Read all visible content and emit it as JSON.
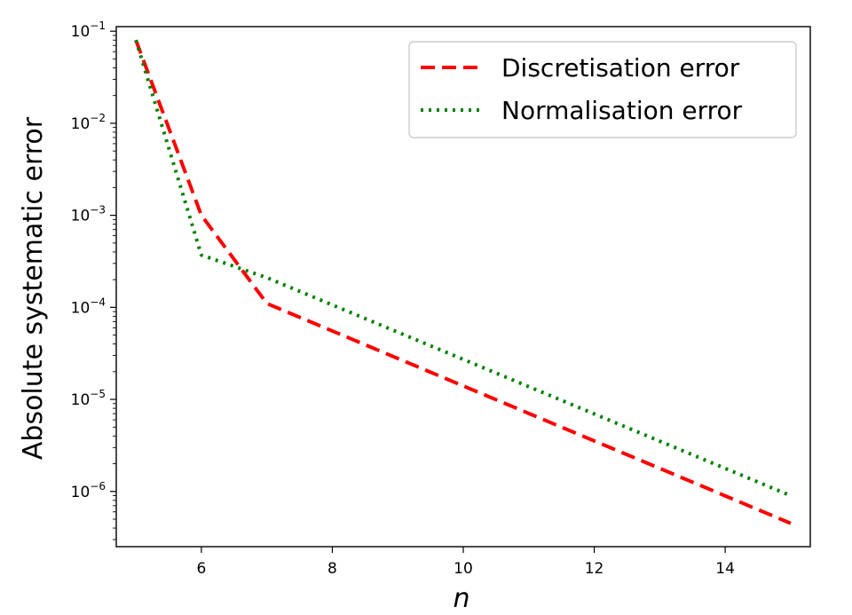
{
  "chart_data": {
    "type": "line",
    "xlabel": "n",
    "ylabel": "Absolute systematic error",
    "yscale": "log",
    "xlim": [
      4.7,
      15.3
    ],
    "ylim_exponents": [
      -6.6,
      -0.95
    ],
    "x_ticks": [
      6,
      8,
      10,
      12,
      14
    ],
    "y_ticks_exponents": [
      -6,
      -5,
      -4,
      -3,
      -2,
      -1
    ],
    "y_tick_base": "10",
    "legend_position": "top-right",
    "series": [
      {
        "name": "Discretisation error",
        "color": "#ff0000",
        "style": "dashed",
        "x": [
          5,
          6,
          7,
          15
        ],
        "y": [
          0.08,
          0.001,
          0.00011,
          4.5e-07
        ]
      },
      {
        "name": "Normalisation error",
        "color": "#008000",
        "style": "dotted",
        "x": [
          5,
          6,
          7,
          15
        ],
        "y": [
          0.08,
          0.00037,
          0.00021,
          9e-07
        ]
      }
    ]
  }
}
